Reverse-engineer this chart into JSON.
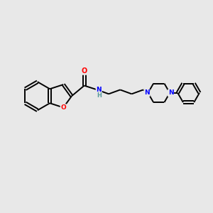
{
  "background_color": "#e8e8e8",
  "bond_color": "#000000",
  "bond_width": 1.4,
  "atom_colors": {
    "N": "#0000ff",
    "O": "#ff0000",
    "H": "#5a9a9a",
    "C": "#000000"
  },
  "figsize": [
    3.0,
    3.0
  ],
  "dpi": 100
}
